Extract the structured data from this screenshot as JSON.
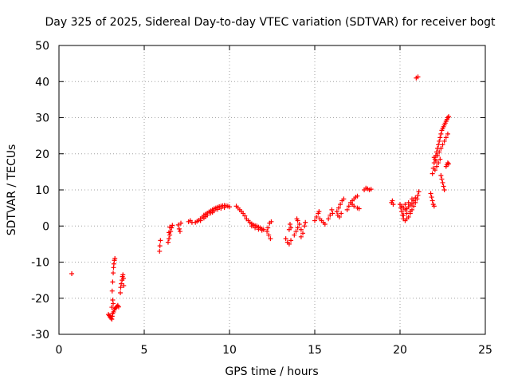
{
  "chart_data": {
    "type": "scatter",
    "title": "Day 325 of 2025, Sidereal Day-to-day VTEC variation (SDTVAR) for receiver bogt",
    "xlabel": "GPS time / hours",
    "ylabel": "SDTVAR / TECUs",
    "xlim": [
      0,
      25
    ],
    "ylim": [
      -30,
      50
    ],
    "xticks": [
      0,
      5,
      10,
      15,
      20,
      25
    ],
    "yticks": [
      -30,
      -20,
      -10,
      0,
      10,
      20,
      30,
      40,
      50
    ],
    "grid": true,
    "marker": "plus",
    "color": "#ff0000",
    "series": [
      {
        "name": "SDTVAR",
        "points": [
          [
            0.75,
            -13.2
          ],
          [
            2.9,
            -24.5
          ],
          [
            2.95,
            -24.8
          ],
          [
            3.0,
            -25.2
          ],
          [
            3.05,
            -25.5
          ],
          [
            3.1,
            -25.8
          ],
          [
            3.12,
            -25.0
          ],
          [
            3.15,
            -24.2
          ],
          [
            3.2,
            -23.8
          ],
          [
            3.25,
            -23.2
          ],
          [
            3.3,
            -22.8
          ],
          [
            3.35,
            -22.5
          ],
          [
            3.4,
            -22.3
          ],
          [
            3.45,
            -22.0
          ],
          [
            3.5,
            -22.4
          ],
          [
            3.12,
            -18.0
          ],
          [
            3.15,
            -15.5
          ],
          [
            3.18,
            -13.0
          ],
          [
            3.2,
            -11.5
          ],
          [
            3.22,
            -10.5
          ],
          [
            3.25,
            -9.5
          ],
          [
            3.28,
            -9.0
          ],
          [
            3.15,
            -20.5
          ],
          [
            3.18,
            -21.5
          ],
          [
            3.1,
            -22.5
          ],
          [
            3.6,
            -18.5
          ],
          [
            3.62,
            -17.0
          ],
          [
            3.65,
            -16.0
          ],
          [
            3.7,
            -15.0
          ],
          [
            3.72,
            -14.0
          ],
          [
            3.75,
            -13.5
          ],
          [
            3.78,
            -14.5
          ],
          [
            3.8,
            -16.5
          ],
          [
            5.9,
            -7.0
          ],
          [
            5.92,
            -5.5
          ],
          [
            5.95,
            -4.0
          ],
          [
            6.4,
            -4.5
          ],
          [
            6.45,
            -3.5
          ],
          [
            6.5,
            -2.5
          ],
          [
            6.55,
            -1.5
          ],
          [
            6.6,
            -0.5
          ],
          [
            6.65,
            0.2
          ],
          [
            6.5,
            -0.3
          ],
          [
            6.45,
            -1.8
          ],
          [
            7.0,
            0.3
          ],
          [
            7.05,
            -0.8
          ],
          [
            7.1,
            -1.5
          ],
          [
            7.15,
            0.8
          ],
          [
            7.6,
            1.2
          ],
          [
            7.7,
            1.5
          ],
          [
            7.8,
            1.0
          ],
          [
            8.0,
            1.0
          ],
          [
            8.1,
            1.3
          ],
          [
            8.2,
            1.6
          ],
          [
            8.3,
            2.0
          ],
          [
            8.4,
            2.5
          ],
          [
            8.5,
            3.0
          ],
          [
            8.6,
            3.3
          ],
          [
            8.7,
            3.6
          ],
          [
            8.8,
            3.9
          ],
          [
            8.9,
            4.2
          ],
          [
            9.0,
            4.5
          ],
          [
            9.1,
            4.8
          ],
          [
            9.2,
            5.0
          ],
          [
            9.3,
            5.2
          ],
          [
            9.4,
            5.4
          ],
          [
            9.5,
            5.5
          ],
          [
            9.6,
            5.6
          ],
          [
            9.7,
            5.7
          ],
          [
            9.8,
            5.6
          ],
          [
            9.9,
            5.5
          ],
          [
            10.0,
            5.3
          ],
          [
            8.3,
            1.5
          ],
          [
            8.5,
            2.2
          ],
          [
            8.7,
            3.0
          ],
          [
            8.9,
            3.6
          ],
          [
            9.1,
            4.2
          ],
          [
            9.3,
            4.6
          ],
          [
            9.5,
            4.9
          ],
          [
            9.7,
            5.1
          ],
          [
            8.6,
            2.6
          ],
          [
            9.0,
            3.8
          ],
          [
            10.4,
            5.5
          ],
          [
            10.5,
            5.0
          ],
          [
            10.6,
            4.5
          ],
          [
            10.7,
            4.0
          ],
          [
            10.8,
            3.5
          ],
          [
            10.9,
            2.8
          ],
          [
            11.0,
            2.0
          ],
          [
            11.1,
            1.5
          ],
          [
            11.2,
            1.0
          ],
          [
            11.3,
            0.6
          ],
          [
            11.4,
            0.3
          ],
          [
            11.5,
            0.1
          ],
          [
            11.6,
            0.0
          ],
          [
            11.7,
            -0.3
          ],
          [
            11.8,
            -0.5
          ],
          [
            11.9,
            -0.8
          ],
          [
            12.0,
            -1.0
          ],
          [
            11.3,
            0.0
          ],
          [
            11.5,
            -0.5
          ],
          [
            11.7,
            -0.9
          ],
          [
            11.9,
            -1.2
          ],
          [
            12.2,
            -1.5
          ],
          [
            12.3,
            -2.5
          ],
          [
            12.4,
            -3.5
          ],
          [
            12.35,
            0.8
          ],
          [
            12.45,
            1.2
          ],
          [
            12.25,
            -0.5
          ],
          [
            13.3,
            -3.5
          ],
          [
            13.4,
            -4.5
          ],
          [
            13.5,
            -5.0
          ],
          [
            13.6,
            -4.0
          ],
          [
            13.5,
            -1.0
          ],
          [
            13.6,
            -0.5
          ],
          [
            13.55,
            0.5
          ],
          [
            13.8,
            -2.5
          ],
          [
            13.9,
            -1.5
          ],
          [
            14.0,
            -0.5
          ],
          [
            14.1,
            0.5
          ],
          [
            14.0,
            1.5
          ],
          [
            13.95,
            2.0
          ],
          [
            14.2,
            -1.0
          ],
          [
            14.3,
            -2.0
          ],
          [
            14.4,
            0.0
          ],
          [
            14.45,
            1.0
          ],
          [
            14.2,
            -3.0
          ],
          [
            15.0,
            1.5
          ],
          [
            15.1,
            2.5
          ],
          [
            15.2,
            3.5
          ],
          [
            15.25,
            4.0
          ],
          [
            15.3,
            2.0
          ],
          [
            15.4,
            1.5
          ],
          [
            15.5,
            1.0
          ],
          [
            15.6,
            0.5
          ],
          [
            15.8,
            2.0
          ],
          [
            15.9,
            3.0
          ],
          [
            16.0,
            4.5
          ],
          [
            16.05,
            3.5
          ],
          [
            16.3,
            4.0
          ],
          [
            16.4,
            5.0
          ],
          [
            16.5,
            6.0
          ],
          [
            16.6,
            7.0
          ],
          [
            16.7,
            7.5
          ],
          [
            16.35,
            3.0
          ],
          [
            16.45,
            2.5
          ],
          [
            16.55,
            3.5
          ],
          [
            16.9,
            4.5
          ],
          [
            17.0,
            5.5
          ],
          [
            17.1,
            6.5
          ],
          [
            17.2,
            7.0
          ],
          [
            17.3,
            7.5
          ],
          [
            17.4,
            8.0
          ],
          [
            17.5,
            8.3
          ],
          [
            17.3,
            5.5
          ],
          [
            17.5,
            5.0
          ],
          [
            17.6,
            4.8
          ],
          [
            17.2,
            6.0
          ],
          [
            18.0,
            10.5
          ],
          [
            18.1,
            10.3
          ],
          [
            18.2,
            10.0
          ],
          [
            18.3,
            10.2
          ],
          [
            17.9,
            10.0
          ],
          [
            19.5,
            6.5
          ],
          [
            19.6,
            6.0
          ],
          [
            19.55,
            7.0
          ],
          [
            20.0,
            6.0
          ],
          [
            20.05,
            5.0
          ],
          [
            20.1,
            4.0
          ],
          [
            20.15,
            3.0
          ],
          [
            20.2,
            2.0
          ],
          [
            20.3,
            1.5
          ],
          [
            20.4,
            2.0
          ],
          [
            20.5,
            2.5
          ],
          [
            20.6,
            3.5
          ],
          [
            20.7,
            4.5
          ],
          [
            20.8,
            5.5
          ],
          [
            20.9,
            6.5
          ],
          [
            21.0,
            7.5
          ],
          [
            21.05,
            8.5
          ],
          [
            21.1,
            9.5
          ],
          [
            20.1,
            5.5
          ],
          [
            20.2,
            5.0
          ],
          [
            20.3,
            4.5
          ],
          [
            20.4,
            4.8
          ],
          [
            20.5,
            5.3
          ],
          [
            20.6,
            5.8
          ],
          [
            20.7,
            6.3
          ],
          [
            20.8,
            7.0
          ],
          [
            20.9,
            7.8
          ],
          [
            20.3,
            6.0
          ],
          [
            20.5,
            6.5
          ],
          [
            20.7,
            7.5
          ],
          [
            20.2,
            3.0
          ],
          [
            20.4,
            3.5
          ],
          [
            20.6,
            4.0
          ],
          [
            20.95,
            41.0
          ],
          [
            21.05,
            41.3
          ],
          [
            21.8,
            9.0
          ],
          [
            21.85,
            8.0
          ],
          [
            21.9,
            7.0
          ],
          [
            21.95,
            6.0
          ],
          [
            22.0,
            5.5
          ],
          [
            21.9,
            14.5
          ],
          [
            21.95,
            16.0
          ],
          [
            22.0,
            17.5
          ],
          [
            22.05,
            18.5
          ],
          [
            22.1,
            19.5
          ],
          [
            22.15,
            20.5
          ],
          [
            22.2,
            21.5
          ],
          [
            22.25,
            22.5
          ],
          [
            22.3,
            23.5
          ],
          [
            22.35,
            24.5
          ],
          [
            22.4,
            25.5
          ],
          [
            22.45,
            26.5
          ],
          [
            22.5,
            27.0
          ],
          [
            22.55,
            27.5
          ],
          [
            22.6,
            28.0
          ],
          [
            22.65,
            28.5
          ],
          [
            22.7,
            29.0
          ],
          [
            22.75,
            29.5
          ],
          [
            22.8,
            30.0
          ],
          [
            22.85,
            30.3
          ],
          [
            22.0,
            19.0
          ],
          [
            22.1,
            18.0
          ],
          [
            22.2,
            19.5
          ],
          [
            22.3,
            20.5
          ],
          [
            22.4,
            21.5
          ],
          [
            22.5,
            22.5
          ],
          [
            22.6,
            23.5
          ],
          [
            22.7,
            24.5
          ],
          [
            22.8,
            25.5
          ],
          [
            22.05,
            15.5
          ],
          [
            22.15,
            16.5
          ],
          [
            22.25,
            17.5
          ],
          [
            22.35,
            18.5
          ],
          [
            22.4,
            14.0
          ],
          [
            22.45,
            13.0
          ],
          [
            22.5,
            12.0
          ],
          [
            22.55,
            11.0
          ],
          [
            22.6,
            10.0
          ],
          [
            22.7,
            16.5
          ],
          [
            22.75,
            17.0
          ],
          [
            22.8,
            17.5
          ],
          [
            22.85,
            17.2
          ]
        ]
      }
    ]
  }
}
